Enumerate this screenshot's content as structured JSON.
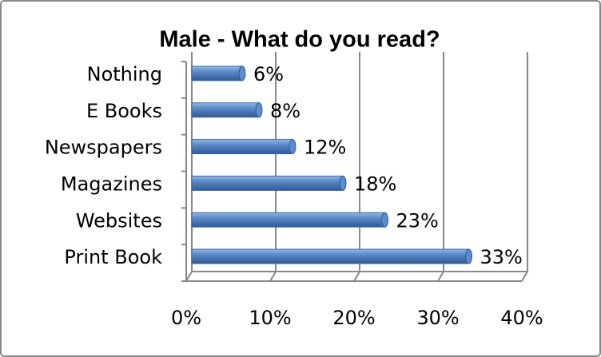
{
  "chart_data": {
    "type": "bar",
    "orientation": "horizontal",
    "title": "Male - What do you read?",
    "categories": [
      "Nothing",
      "E Books",
      "Newspapers",
      "Magazines",
      "Websites",
      "Print Book"
    ],
    "values": [
      6,
      8,
      12,
      18,
      23,
      33
    ],
    "value_labels": [
      "6%",
      "8%",
      "12%",
      "18%",
      "23%",
      "33%"
    ],
    "color": "#4f81bd",
    "xlim": [
      0,
      40
    ],
    "xticks": [
      {
        "value": 0,
        "label": "0%"
      },
      {
        "value": 10,
        "label": "10%"
      },
      {
        "value": 20,
        "label": "20%"
      },
      {
        "value": 30,
        "label": "30%"
      },
      {
        "value": 40,
        "label": "40%"
      }
    ],
    "grid": true
  }
}
